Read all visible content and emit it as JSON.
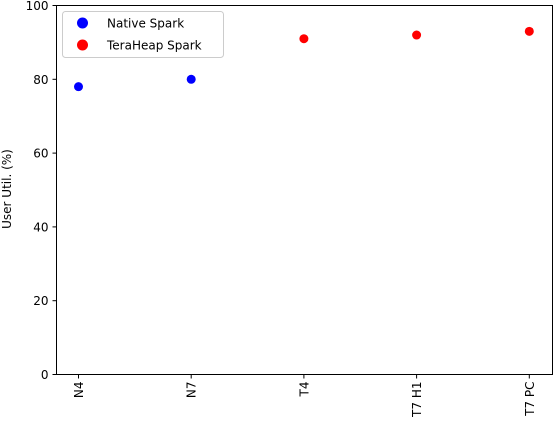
{
  "chart_data": {
    "type": "scatter",
    "categories": [
      "N4",
      "N7",
      "T4",
      "T7 H1",
      "T7 PC"
    ],
    "series": [
      {
        "name": "Native Spark",
        "color": "#0000ff",
        "points": [
          {
            "x": "N4",
            "y": 78
          },
          {
            "x": "N7",
            "y": 80
          }
        ]
      },
      {
        "name": "TeraHeap Spark",
        "color": "#ff0000",
        "points": [
          {
            "x": "T4",
            "y": 91
          },
          {
            "x": "T7 H1",
            "y": 92
          },
          {
            "x": "T7 PC",
            "y": 93
          }
        ]
      }
    ],
    "xlabel": "",
    "ylabel": "User Util. (%)",
    "ylim": [
      0,
      100
    ],
    "yticks": [
      0,
      20,
      40,
      60,
      80,
      100
    ],
    "grid": false,
    "legend_position": "top-left"
  }
}
